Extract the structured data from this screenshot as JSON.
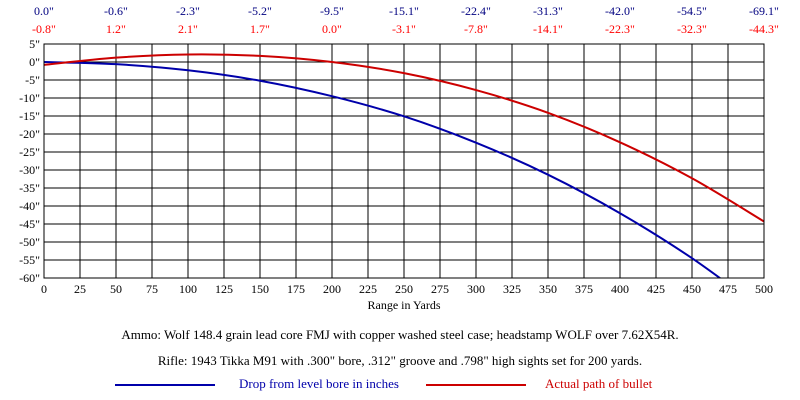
{
  "chart_data": {
    "type": "line",
    "xlabel": "Range in Yards",
    "ylabel": "",
    "xlim": [
      0,
      500
    ],
    "ylim": [
      -60,
      5
    ],
    "x_ticks": [
      0,
      25,
      50,
      75,
      100,
      125,
      150,
      175,
      200,
      225,
      250,
      275,
      300,
      325,
      350,
      375,
      400,
      425,
      450,
      475,
      500
    ],
    "y_ticks": [
      5,
      0,
      -5,
      -10,
      -15,
      -20,
      -25,
      -30,
      -35,
      -40,
      -45,
      -50,
      -55,
      -60
    ],
    "y_tick_labels": [
      "5\"",
      "0\"",
      "-5\"",
      "-10\"",
      "-15\"",
      "-20\"",
      "-25\"",
      "-30\"",
      "-35\"",
      "-40\"",
      "-45\"",
      "-50\"",
      "-55\"",
      "-60\""
    ],
    "grid": true,
    "top_labels": {
      "x": [
        0,
        50,
        100,
        150,
        200,
        250,
        300,
        350,
        400,
        450,
        500
      ],
      "drop": [
        "0.0\"",
        "-0.6\"",
        "-2.3\"",
        "-5.2\"",
        "-9.5\"",
        "-15.1\"",
        "-22.4\"",
        "-31.3\"",
        "-42.0\"",
        "-54.5\"",
        "-69.1\""
      ],
      "path": [
        "-0.8\"",
        "1.2\"",
        "2.1\"",
        "1.7\"",
        "0.0\"",
        "-3.1\"",
        "-7.8\"",
        "-14.1\"",
        "-22.3\"",
        "-32.3\"",
        "-44.3\""
      ]
    },
    "series": [
      {
        "name": "Drop from level bore in inches",
        "color": "#0000aa",
        "x": [
          0,
          50,
          100,
          150,
          200,
          250,
          300,
          350,
          400,
          450,
          500
        ],
        "values": [
          0.0,
          -0.6,
          -2.3,
          -5.2,
          -9.5,
          -15.1,
          -22.4,
          -31.3,
          -42.0,
          -54.5,
          -69.1
        ]
      },
      {
        "name": "Actual path of bullet",
        "color": "#cc0000",
        "x": [
          0,
          50,
          100,
          150,
          200,
          250,
          300,
          350,
          400,
          450,
          500
        ],
        "values": [
          -0.8,
          1.2,
          2.1,
          1.7,
          0.0,
          -3.1,
          -7.8,
          -14.1,
          -22.3,
          -32.3,
          -44.3
        ]
      }
    ]
  },
  "notes": {
    "ammo": "Ammo:  Wolf 148.4 grain lead core FMJ with copper washed steel case; headstamp WOLF over 7.62X54R.",
    "rifle": "Rifle:  1943 Tikka M91 with .300\" bore, .312\" groove and .798\" high sights set for 200 yards."
  }
}
